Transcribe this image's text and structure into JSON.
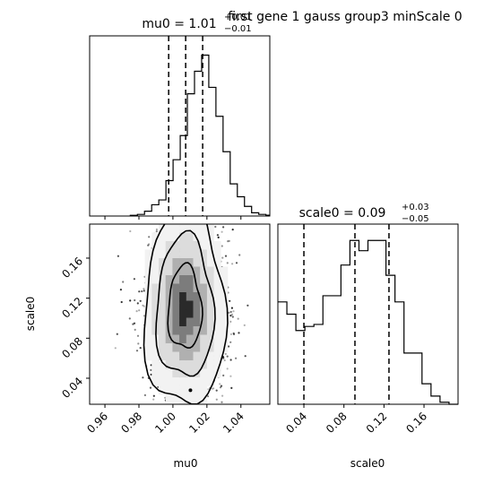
{
  "figure": {
    "suptitle": "first gene 1 gauss group3 minScale 0"
  },
  "chart_data": [
    {
      "type": "histogram",
      "panel": "mu0-marginal",
      "title_main": "mu0 = 1.01",
      "title_sup": "+0.01",
      "title_sub": "−0.01",
      "xlim": [
        0.951,
        1.057
      ],
      "x_bin_edges": [
        0.9749,
        0.977,
        0.9791,
        0.9812,
        0.9833,
        0.9854,
        0.9875,
        0.9896,
        0.9917,
        0.9938,
        0.9959,
        0.998,
        1.0001,
        1.0022,
        1.0043,
        1.0064,
        1.0085,
        1.0106,
        1.0127,
        1.0148,
        1.0169,
        1.019,
        1.0211,
        1.0232,
        1.0253,
        1.0274,
        1.0295,
        1.0316,
        1.0337,
        1.0358,
        1.0379,
        1.04,
        1.0421,
        1.0442,
        1.0463,
        1.0484,
        1.0505,
        1.0526,
        1.0547,
        1.0568
      ],
      "counts": [
        0.4,
        0.4,
        1.0,
        1.0,
        3.0,
        3.0,
        7.0,
        7.0,
        10.0,
        10.0,
        22.0,
        22.0,
        35.0,
        35.0,
        50.0,
        50.0,
        76.0,
        76.0,
        90.0,
        90.0,
        100.0,
        100.0,
        80.0,
        80.0,
        62.0,
        62.0,
        40.0,
        40.0,
        20.0,
        20.0,
        12.0,
        12.0,
        6.0,
        6.0,
        2.0,
        2.0,
        1.0,
        1.0,
        0.5
      ],
      "quantiles": [
        0.9975,
        1.0075,
        1.0175
      ],
      "ylim": [
        0,
        112
      ]
    },
    {
      "type": "histogram",
      "panel": "scale0-marginal",
      "title_main": "scale0 = 0.09",
      "title_sup": "+0.03",
      "title_sub": "−0.05",
      "xlabel": "scale0",
      "xlim": [
        0.014,
        0.194
      ],
      "xticks": [
        0.04,
        0.08,
        0.12,
        0.16
      ],
      "xtick_labels": [
        "0.04",
        "0.08",
        "0.12",
        "0.16"
      ],
      "x_bin_edges": [
        0.014,
        0.023,
        0.032,
        0.041,
        0.05,
        0.059,
        0.068,
        0.077,
        0.086,
        0.095,
        0.104,
        0.113,
        0.122,
        0.131,
        0.14,
        0.149,
        0.158,
        0.167,
        0.176,
        0.185,
        0.194
      ],
      "counts": [
        50,
        44,
        36,
        38,
        39,
        53,
        53,
        68,
        80,
        75,
        80,
        80,
        63,
        50,
        25,
        25,
        10,
        4,
        1,
        0
      ],
      "quantiles": [
        0.04,
        0.091,
        0.125
      ],
      "ylim": [
        0,
        88
      ]
    },
    {
      "type": "scatter",
      "panel": "joint-2d",
      "xlabel": "mu0",
      "ylabel": "scale0",
      "xlim": [
        0.951,
        1.057
      ],
      "ylim": [
        0.014,
        0.194
      ],
      "xticks": [
        0.96,
        0.98,
        1.0,
        1.02,
        1.04
      ],
      "xtick_labels": [
        "0.96",
        "0.98",
        "1.00",
        "1.02",
        "1.04"
      ],
      "yticks": [
        0.04,
        0.08,
        0.12,
        0.16
      ],
      "ytick_labels": [
        "0.04",
        "0.08",
        "0.12",
        "0.16"
      ],
      "posterior_center": [
        1.007,
        0.11
      ],
      "posterior_sd": [
        0.0116,
        0.048
      ],
      "contour_levels": [
        0.39,
        0.86,
        0.99
      ]
    }
  ]
}
